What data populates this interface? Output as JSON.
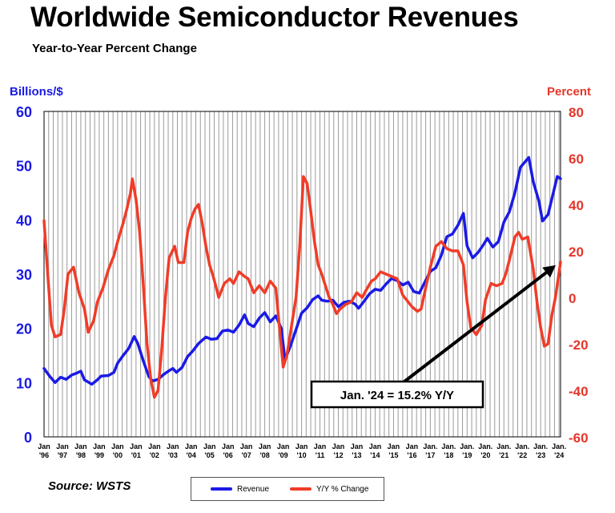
{
  "title": "Worldwide Semiconductor Revenues",
  "subtitle": "Year-to-Year Percent Change",
  "source": "Source: WSTS",
  "colors": {
    "revenue": "#1a1ae6",
    "yoy": "#f03c28",
    "left_axis": "#1a1ae6",
    "right_axis": "#e6352a",
    "grid": "#9a9a9a"
  },
  "chart_data": {
    "type": "line",
    "title": "Worldwide Semiconductor Revenues",
    "subtitle": "Year-to-Year Percent Change",
    "ylabel_left": "Billions/$",
    "ylabel_right": "Percent",
    "ylim_left": [
      0,
      60
    ],
    "ylim_right": [
      -60,
      80
    ],
    "yticks_left": [
      "0",
      "10",
      "20",
      "30",
      "40",
      "50",
      "60"
    ],
    "yticks_right": [
      "-60",
      "-40",
      "-20",
      "0",
      "20",
      "40",
      "60",
      "80"
    ],
    "grid": "vertical",
    "xlim": [
      1996.0,
      2024.08
    ],
    "x_ticks": [
      {
        "x": 1996,
        "top": "Jan",
        "bottom": "'96"
      },
      {
        "x": 1997,
        "top": "Jan",
        "bottom": "'97"
      },
      {
        "x": 1998,
        "top": "Jan",
        "bottom": "'98"
      },
      {
        "x": 1999,
        "top": "Jan",
        "bottom": "'99"
      },
      {
        "x": 2000,
        "top": "Jan",
        "bottom": "'00"
      },
      {
        "x": 2001,
        "top": "Jan",
        "bottom": "'01"
      },
      {
        "x": 2002,
        "top": "Jan",
        "bottom": "'02"
      },
      {
        "x": 2003,
        "top": "Jan",
        "bottom": "'03"
      },
      {
        "x": 2004,
        "top": "Jan",
        "bottom": "'04"
      },
      {
        "x": 2005,
        "top": "Jan",
        "bottom": "'05"
      },
      {
        "x": 2006,
        "top": "Jan",
        "bottom": "'06"
      },
      {
        "x": 2007,
        "top": "Jan",
        "bottom": "'07"
      },
      {
        "x": 2008,
        "top": "Jan",
        "bottom": "'08"
      },
      {
        "x": 2009,
        "top": "Jan",
        "bottom": "'09"
      },
      {
        "x": 2010,
        "top": "Jan",
        "bottom": "'10"
      },
      {
        "x": 2011,
        "top": "Jan",
        "bottom": "'11"
      },
      {
        "x": 2012,
        "top": "Jan",
        "bottom": "'12"
      },
      {
        "x": 2013,
        "top": "Jan",
        "bottom": "'13"
      },
      {
        "x": 2014,
        "top": "Jan",
        "bottom": "'14"
      },
      {
        "x": 2015,
        "top": "Jan",
        "bottom": "'15"
      },
      {
        "x": 2016,
        "top": "Jan",
        "bottom": "'16"
      },
      {
        "x": 2017,
        "top": "Jan.",
        "bottom": "'17"
      },
      {
        "x": 2018,
        "top": "Jan.",
        "bottom": "'18"
      },
      {
        "x": 2019,
        "top": "Jan.",
        "bottom": "'19"
      },
      {
        "x": 2020,
        "top": "Jan.",
        "bottom": "'20"
      },
      {
        "x": 2021,
        "top": "Jan.",
        "bottom": "'21"
      },
      {
        "x": 2022,
        "top": "Jan.",
        "bottom": "'22"
      },
      {
        "x": 2023,
        "top": "Jan.",
        "bottom": "'23"
      },
      {
        "x": 2024,
        "top": "Jan.",
        "bottom": "'24"
      }
    ],
    "legend_position": "bottom-center",
    "series": [
      {
        "name": "Revenue",
        "axis": "left",
        "points": [
          [
            1996.0,
            12.6
          ],
          [
            1996.3,
            11.2
          ],
          [
            1996.6,
            10.0
          ],
          [
            1996.9,
            11.0
          ],
          [
            1997.2,
            10.6
          ],
          [
            1997.5,
            11.4
          ],
          [
            1997.8,
            11.8
          ],
          [
            1998.0,
            12.1
          ],
          [
            1998.2,
            10.5
          ],
          [
            1998.6,
            9.7
          ],
          [
            1998.9,
            10.5
          ],
          [
            1999.1,
            11.2
          ],
          [
            1999.5,
            11.3
          ],
          [
            1999.8,
            11.9
          ],
          [
            2000.0,
            13.6
          ],
          [
            2000.3,
            15.0
          ],
          [
            2000.6,
            16.3
          ],
          [
            2000.9,
            18.5
          ],
          [
            2001.1,
            17.2
          ],
          [
            2001.4,
            14.0
          ],
          [
            2001.7,
            11.1
          ],
          [
            2001.9,
            10.3
          ],
          [
            2002.2,
            10.6
          ],
          [
            2002.5,
            11.5
          ],
          [
            2002.8,
            12.2
          ],
          [
            2003.0,
            12.6
          ],
          [
            2003.2,
            11.9
          ],
          [
            2003.5,
            12.8
          ],
          [
            2003.8,
            14.8
          ],
          [
            2004.1,
            15.9
          ],
          [
            2004.4,
            17.2
          ],
          [
            2004.8,
            18.4
          ],
          [
            2005.1,
            18.0
          ],
          [
            2005.4,
            18.1
          ],
          [
            2005.7,
            19.5
          ],
          [
            2006.0,
            19.7
          ],
          [
            2006.3,
            19.3
          ],
          [
            2006.6,
            20.6
          ],
          [
            2006.9,
            22.5
          ],
          [
            2007.1,
            20.9
          ],
          [
            2007.4,
            20.3
          ],
          [
            2007.7,
            21.9
          ],
          [
            2008.0,
            22.9
          ],
          [
            2008.3,
            21.2
          ],
          [
            2008.6,
            22.3
          ],
          [
            2008.9,
            20.0
          ],
          [
            2009.1,
            14.2
          ],
          [
            2009.4,
            16.8
          ],
          [
            2009.7,
            19.8
          ],
          [
            2010.0,
            22.8
          ],
          [
            2010.3,
            23.8
          ],
          [
            2010.6,
            25.3
          ],
          [
            2010.9,
            26.0
          ],
          [
            2011.1,
            25.2
          ],
          [
            2011.4,
            25.0
          ],
          [
            2011.7,
            25.2
          ],
          [
            2012.0,
            24.0
          ],
          [
            2012.3,
            24.8
          ],
          [
            2012.6,
            25.0
          ],
          [
            2012.9,
            24.5
          ],
          [
            2013.1,
            23.7
          ],
          [
            2013.4,
            25.0
          ],
          [
            2013.7,
            26.4
          ],
          [
            2014.0,
            27.2
          ],
          [
            2014.3,
            27.0
          ],
          [
            2014.6,
            28.2
          ],
          [
            2014.9,
            29.2
          ],
          [
            2015.2,
            28.8
          ],
          [
            2015.5,
            28.0
          ],
          [
            2015.8,
            28.5
          ],
          [
            2016.1,
            26.8
          ],
          [
            2016.4,
            26.5
          ],
          [
            2016.7,
            28.5
          ],
          [
            2017.0,
            30.5
          ],
          [
            2017.3,
            31.2
          ],
          [
            2017.6,
            33.5
          ],
          [
            2017.9,
            36.9
          ],
          [
            2018.2,
            37.4
          ],
          [
            2018.5,
            39.0
          ],
          [
            2018.8,
            41.2
          ],
          [
            2019.0,
            35.2
          ],
          [
            2019.3,
            33.0
          ],
          [
            2019.6,
            34.0
          ],
          [
            2019.9,
            35.5
          ],
          [
            2020.1,
            36.6
          ],
          [
            2020.4,
            35.0
          ],
          [
            2020.7,
            36.0
          ],
          [
            2021.0,
            39.6
          ],
          [
            2021.3,
            41.5
          ],
          [
            2021.6,
            45.0
          ],
          [
            2021.9,
            49.7
          ],
          [
            2022.1,
            50.5
          ],
          [
            2022.35,
            51.5
          ],
          [
            2022.6,
            47.0
          ],
          [
            2022.9,
            43.5
          ],
          [
            2023.1,
            39.8
          ],
          [
            2023.4,
            41.0
          ],
          [
            2023.7,
            45.2
          ],
          [
            2023.9,
            48.0
          ],
          [
            2024.08,
            47.6
          ]
        ]
      },
      {
        "name": "Y/Y % Change",
        "axis": "right",
        "points": [
          [
            1996.0,
            33
          ],
          [
            1996.2,
            10
          ],
          [
            1996.4,
            -12
          ],
          [
            1996.6,
            -17
          ],
          [
            1996.9,
            -16
          ],
          [
            1997.1,
            -5
          ],
          [
            1997.3,
            10
          ],
          [
            1997.6,
            13
          ],
          [
            1997.9,
            2
          ],
          [
            1998.2,
            -5
          ],
          [
            1998.4,
            -15
          ],
          [
            1998.7,
            -10
          ],
          [
            1998.9,
            -2
          ],
          [
            1999.2,
            4
          ],
          [
            1999.5,
            12
          ],
          [
            1999.8,
            18
          ],
          [
            2000.0,
            24
          ],
          [
            2000.3,
            32
          ],
          [
            2000.5,
            38
          ],
          [
            2000.7,
            45
          ],
          [
            2000.8,
            51
          ],
          [
            2001.0,
            42
          ],
          [
            2001.2,
            28
          ],
          [
            2001.4,
            5
          ],
          [
            2001.6,
            -20
          ],
          [
            2001.8,
            -35
          ],
          [
            2002.0,
            -43
          ],
          [
            2002.2,
            -40
          ],
          [
            2002.4,
            -22
          ],
          [
            2002.6,
            0
          ],
          [
            2002.8,
            17
          ],
          [
            2003.1,
            22
          ],
          [
            2003.3,
            15
          ],
          [
            2003.6,
            15
          ],
          [
            2003.8,
            28
          ],
          [
            2004.0,
            34
          ],
          [
            2004.2,
            38
          ],
          [
            2004.4,
            40
          ],
          [
            2004.6,
            32
          ],
          [
            2004.8,
            22
          ],
          [
            2005.0,
            14
          ],
          [
            2005.2,
            9
          ],
          [
            2005.5,
            0
          ],
          [
            2005.8,
            6
          ],
          [
            2006.1,
            8
          ],
          [
            2006.3,
            6
          ],
          [
            2006.6,
            11
          ],
          [
            2006.9,
            9
          ],
          [
            2007.1,
            8
          ],
          [
            2007.4,
            2
          ],
          [
            2007.7,
            5
          ],
          [
            2008.0,
            2
          ],
          [
            2008.3,
            7
          ],
          [
            2008.6,
            4
          ],
          [
            2008.8,
            -13
          ],
          [
            2009.0,
            -30
          ],
          [
            2009.2,
            -25
          ],
          [
            2009.4,
            -15
          ],
          [
            2009.7,
            0
          ],
          [
            2009.9,
            22
          ],
          [
            2010.1,
            52
          ],
          [
            2010.3,
            49
          ],
          [
            2010.5,
            37
          ],
          [
            2010.7,
            24
          ],
          [
            2010.9,
            14
          ],
          [
            2011.1,
            10
          ],
          [
            2011.3,
            5
          ],
          [
            2011.5,
            0
          ],
          [
            2011.7,
            -3
          ],
          [
            2011.9,
            -7
          ],
          [
            2012.1,
            -5
          ],
          [
            2012.4,
            -3
          ],
          [
            2012.7,
            -2
          ],
          [
            2013.0,
            2
          ],
          [
            2013.3,
            0
          ],
          [
            2013.5,
            3
          ],
          [
            2013.8,
            7
          ],
          [
            2014.0,
            8
          ],
          [
            2014.3,
            11
          ],
          [
            2014.6,
            10
          ],
          [
            2014.9,
            9
          ],
          [
            2015.2,
            8
          ],
          [
            2015.5,
            1
          ],
          [
            2015.8,
            -2
          ],
          [
            2016.0,
            -4
          ],
          [
            2016.3,
            -6
          ],
          [
            2016.5,
            -5
          ],
          [
            2016.8,
            6
          ],
          [
            2017.0,
            13
          ],
          [
            2017.3,
            22
          ],
          [
            2017.6,
            24
          ],
          [
            2017.9,
            21
          ],
          [
            2018.2,
            20
          ],
          [
            2018.5,
            20
          ],
          [
            2018.8,
            14
          ],
          [
            2019.0,
            -2
          ],
          [
            2019.2,
            -13
          ],
          [
            2019.5,
            -16
          ],
          [
            2019.8,
            -12
          ],
          [
            2020.0,
            -1
          ],
          [
            2020.3,
            6
          ],
          [
            2020.6,
            5
          ],
          [
            2020.9,
            6
          ],
          [
            2021.1,
            10
          ],
          [
            2021.3,
            16
          ],
          [
            2021.6,
            26
          ],
          [
            2021.8,
            28
          ],
          [
            2022.0,
            25
          ],
          [
            2022.3,
            26
          ],
          [
            2022.6,
            12
          ],
          [
            2022.8,
            -2
          ],
          [
            2023.0,
            -13
          ],
          [
            2023.2,
            -21
          ],
          [
            2023.4,
            -20
          ],
          [
            2023.6,
            -8
          ],
          [
            2023.8,
            0
          ],
          [
            2023.95,
            8
          ],
          [
            2024.08,
            15.2
          ]
        ]
      }
    ],
    "annotation": {
      "text": "Jan. '24 = 15.2% Y/Y",
      "points_to": [
        2024.08,
        15.2
      ],
      "axis": "right"
    },
    "legend": [
      {
        "name": "Revenue",
        "color": "#1a1ae6"
      },
      {
        "name": "Y/Y % Change",
        "color": "#f03c28"
      }
    ]
  }
}
